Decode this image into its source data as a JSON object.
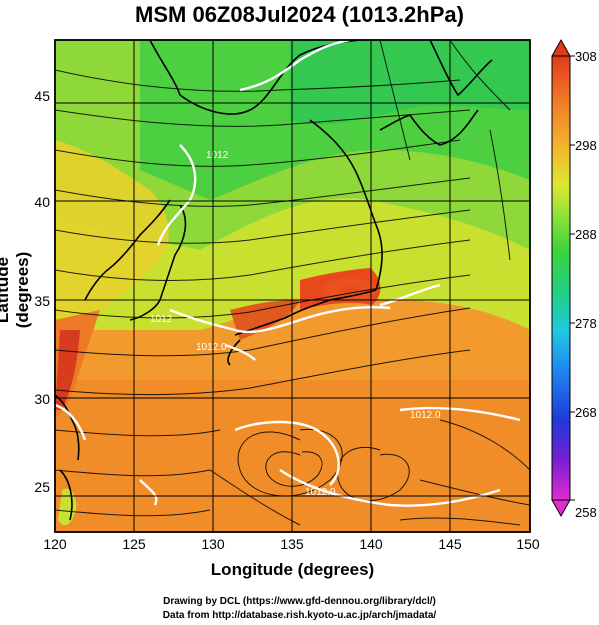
{
  "title": "MSM 06Z08Jul2024 (1013.2hPa)",
  "x_axis": {
    "label": "Longitude (degrees)",
    "ticks": [
      "120",
      "125",
      "130",
      "135",
      "140",
      "145",
      "150"
    ]
  },
  "y_axis": {
    "label": "Latitude  (degrees)",
    "ticks": [
      "25",
      "30",
      "35",
      "40",
      "45"
    ]
  },
  "colorbar": {
    "ticks": [
      "308",
      "298",
      "288",
      "278",
      "268",
      "258"
    ],
    "colors": [
      "#e02cd0",
      "#7a1ed0",
      "#1f3ad8",
      "#1f8cf0",
      "#21c8e0",
      "#20d08a",
      "#3cd23c",
      "#8fe23a",
      "#dce830",
      "#f2b830",
      "#f07a28",
      "#e03a1a"
    ]
  },
  "contour_labels": [
    "1012.0",
    "1012.0",
    "1012",
    "1012.0",
    "1012"
  ],
  "footer": {
    "line1": "Drawing by DCL (https://www.gfd-dennou.org/library/dcl/)",
    "line2": "Data from http://database.rish.kyoto-u.ac.jp/arch/jmadata/"
  }
}
